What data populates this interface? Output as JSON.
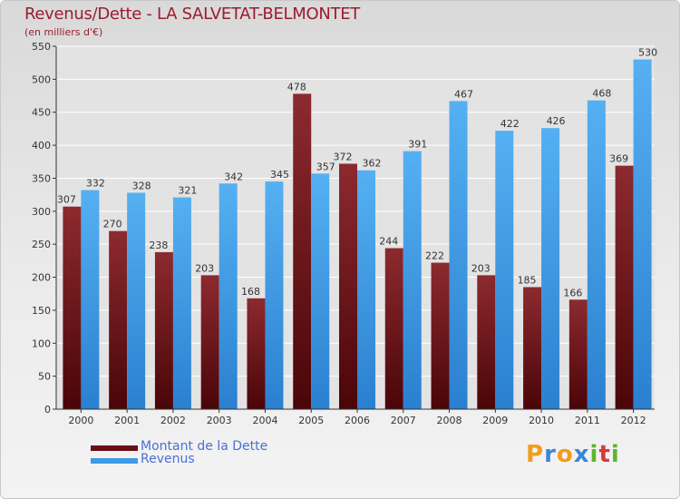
{
  "header": {
    "title": "Revenus/Dette - LA SALVETAT-BELMONTET",
    "subtitle": "(en milliers d'€)"
  },
  "chart_data": {
    "type": "bar",
    "categories": [
      "2000",
      "2001",
      "2002",
      "2003",
      "2004",
      "2005",
      "2006",
      "2007",
      "2008",
      "2009",
      "2010",
      "2011",
      "2012"
    ],
    "series": [
      {
        "name": "Montant de la Dette",
        "color": "#7a1a1f",
        "values": [
          307,
          270,
          238,
          203,
          168,
          478,
          372,
          244,
          222,
          203,
          185,
          166,
          369
        ]
      },
      {
        "name": "Revenus",
        "color": "#3d9be6",
        "values": [
          332,
          328,
          321,
          342,
          345,
          357,
          362,
          391,
          467,
          422,
          426,
          468,
          530
        ]
      }
    ],
    "ylim": [
      0,
      550
    ],
    "yticks": [
      0,
      50,
      100,
      150,
      200,
      250,
      300,
      350,
      400,
      450,
      500,
      550
    ],
    "grid": true,
    "legend_position": "bottom-left"
  },
  "legend": {
    "debt_label": "Montant de la Dette",
    "revenue_label": "Revenus"
  },
  "logo": {
    "letters": [
      "P",
      "r",
      "o",
      "x",
      "i",
      "t",
      "i"
    ],
    "colors": [
      "#f39c1e",
      "#3a87d6",
      "#f39c1e",
      "#3a87d6",
      "#5fb52e",
      "#d63a3a",
      "#5fb52e"
    ]
  }
}
